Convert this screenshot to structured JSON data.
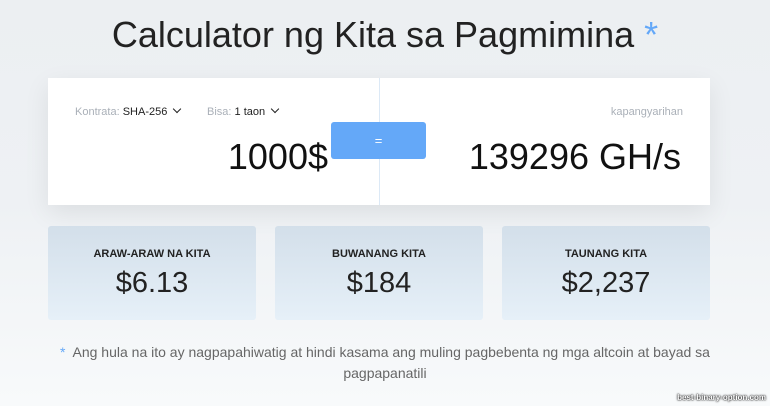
{
  "title": {
    "text": "Calculator ng Kita sa Pagmimina",
    "asterisk": "*"
  },
  "calculator": {
    "contract_label": "Kontrata:",
    "contract_value": "SHA-256",
    "validity_label": "Bisa:",
    "validity_value": "1 taon",
    "amount": "1000$",
    "equals_label": "=",
    "power_label": "kapangyarihan",
    "power_value": "139296 GH/s"
  },
  "results": [
    {
      "label": "ARAW-ARAW NA KITA",
      "value": "$6.13"
    },
    {
      "label": "BUWANANG KITA",
      "value": "$184"
    },
    {
      "label": "TAUNANG KITA",
      "value": "$2,237"
    }
  ],
  "footnote": {
    "asterisk": "*",
    "text": "Ang hula na ito ay nagpapahiwatig at hindi kasama ang muling pagbebenta ng mga altcoin at bayad sa pagpapanatili"
  },
  "watermark": "best-binary-option.com",
  "colors": {
    "accent": "#64a8f8"
  }
}
